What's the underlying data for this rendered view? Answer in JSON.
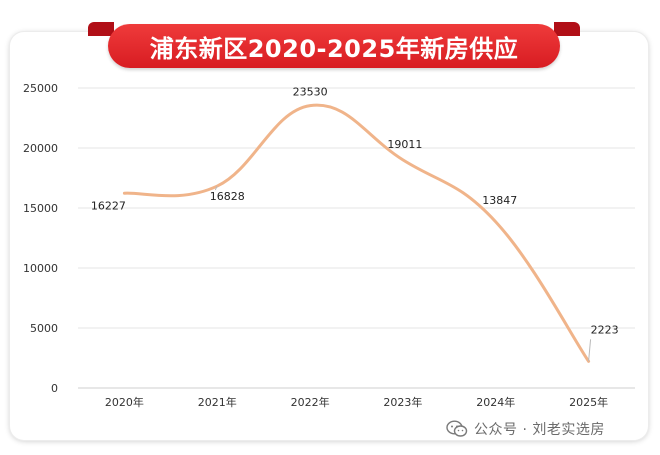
{
  "chart_data": {
    "type": "line",
    "title": "浦东新区2020-2025年新房供应",
    "categories": [
      "2020年",
      "2021年",
      "2022年",
      "2023年",
      "2024年",
      "2025年"
    ],
    "series": [
      {
        "values": [
          16227,
          16828,
          23530,
          19011,
          13847,
          2223
        ]
      }
    ],
    "data_labels": [
      "16227",
      "16828",
      "23530",
      "19011",
      "13847",
      "2223"
    ],
    "yticks": [
      "0",
      "5000",
      "10000",
      "15000",
      "20000",
      "25000"
    ],
    "ylim": [
      0,
      25000
    ],
    "grid": "horizontal",
    "smooth": true,
    "line_color": "#f0b48a"
  },
  "banner_color": "#e02a2a",
  "watermark": {
    "icon": "wechat-icon",
    "text": "公众号 · 刘老实选房"
  }
}
